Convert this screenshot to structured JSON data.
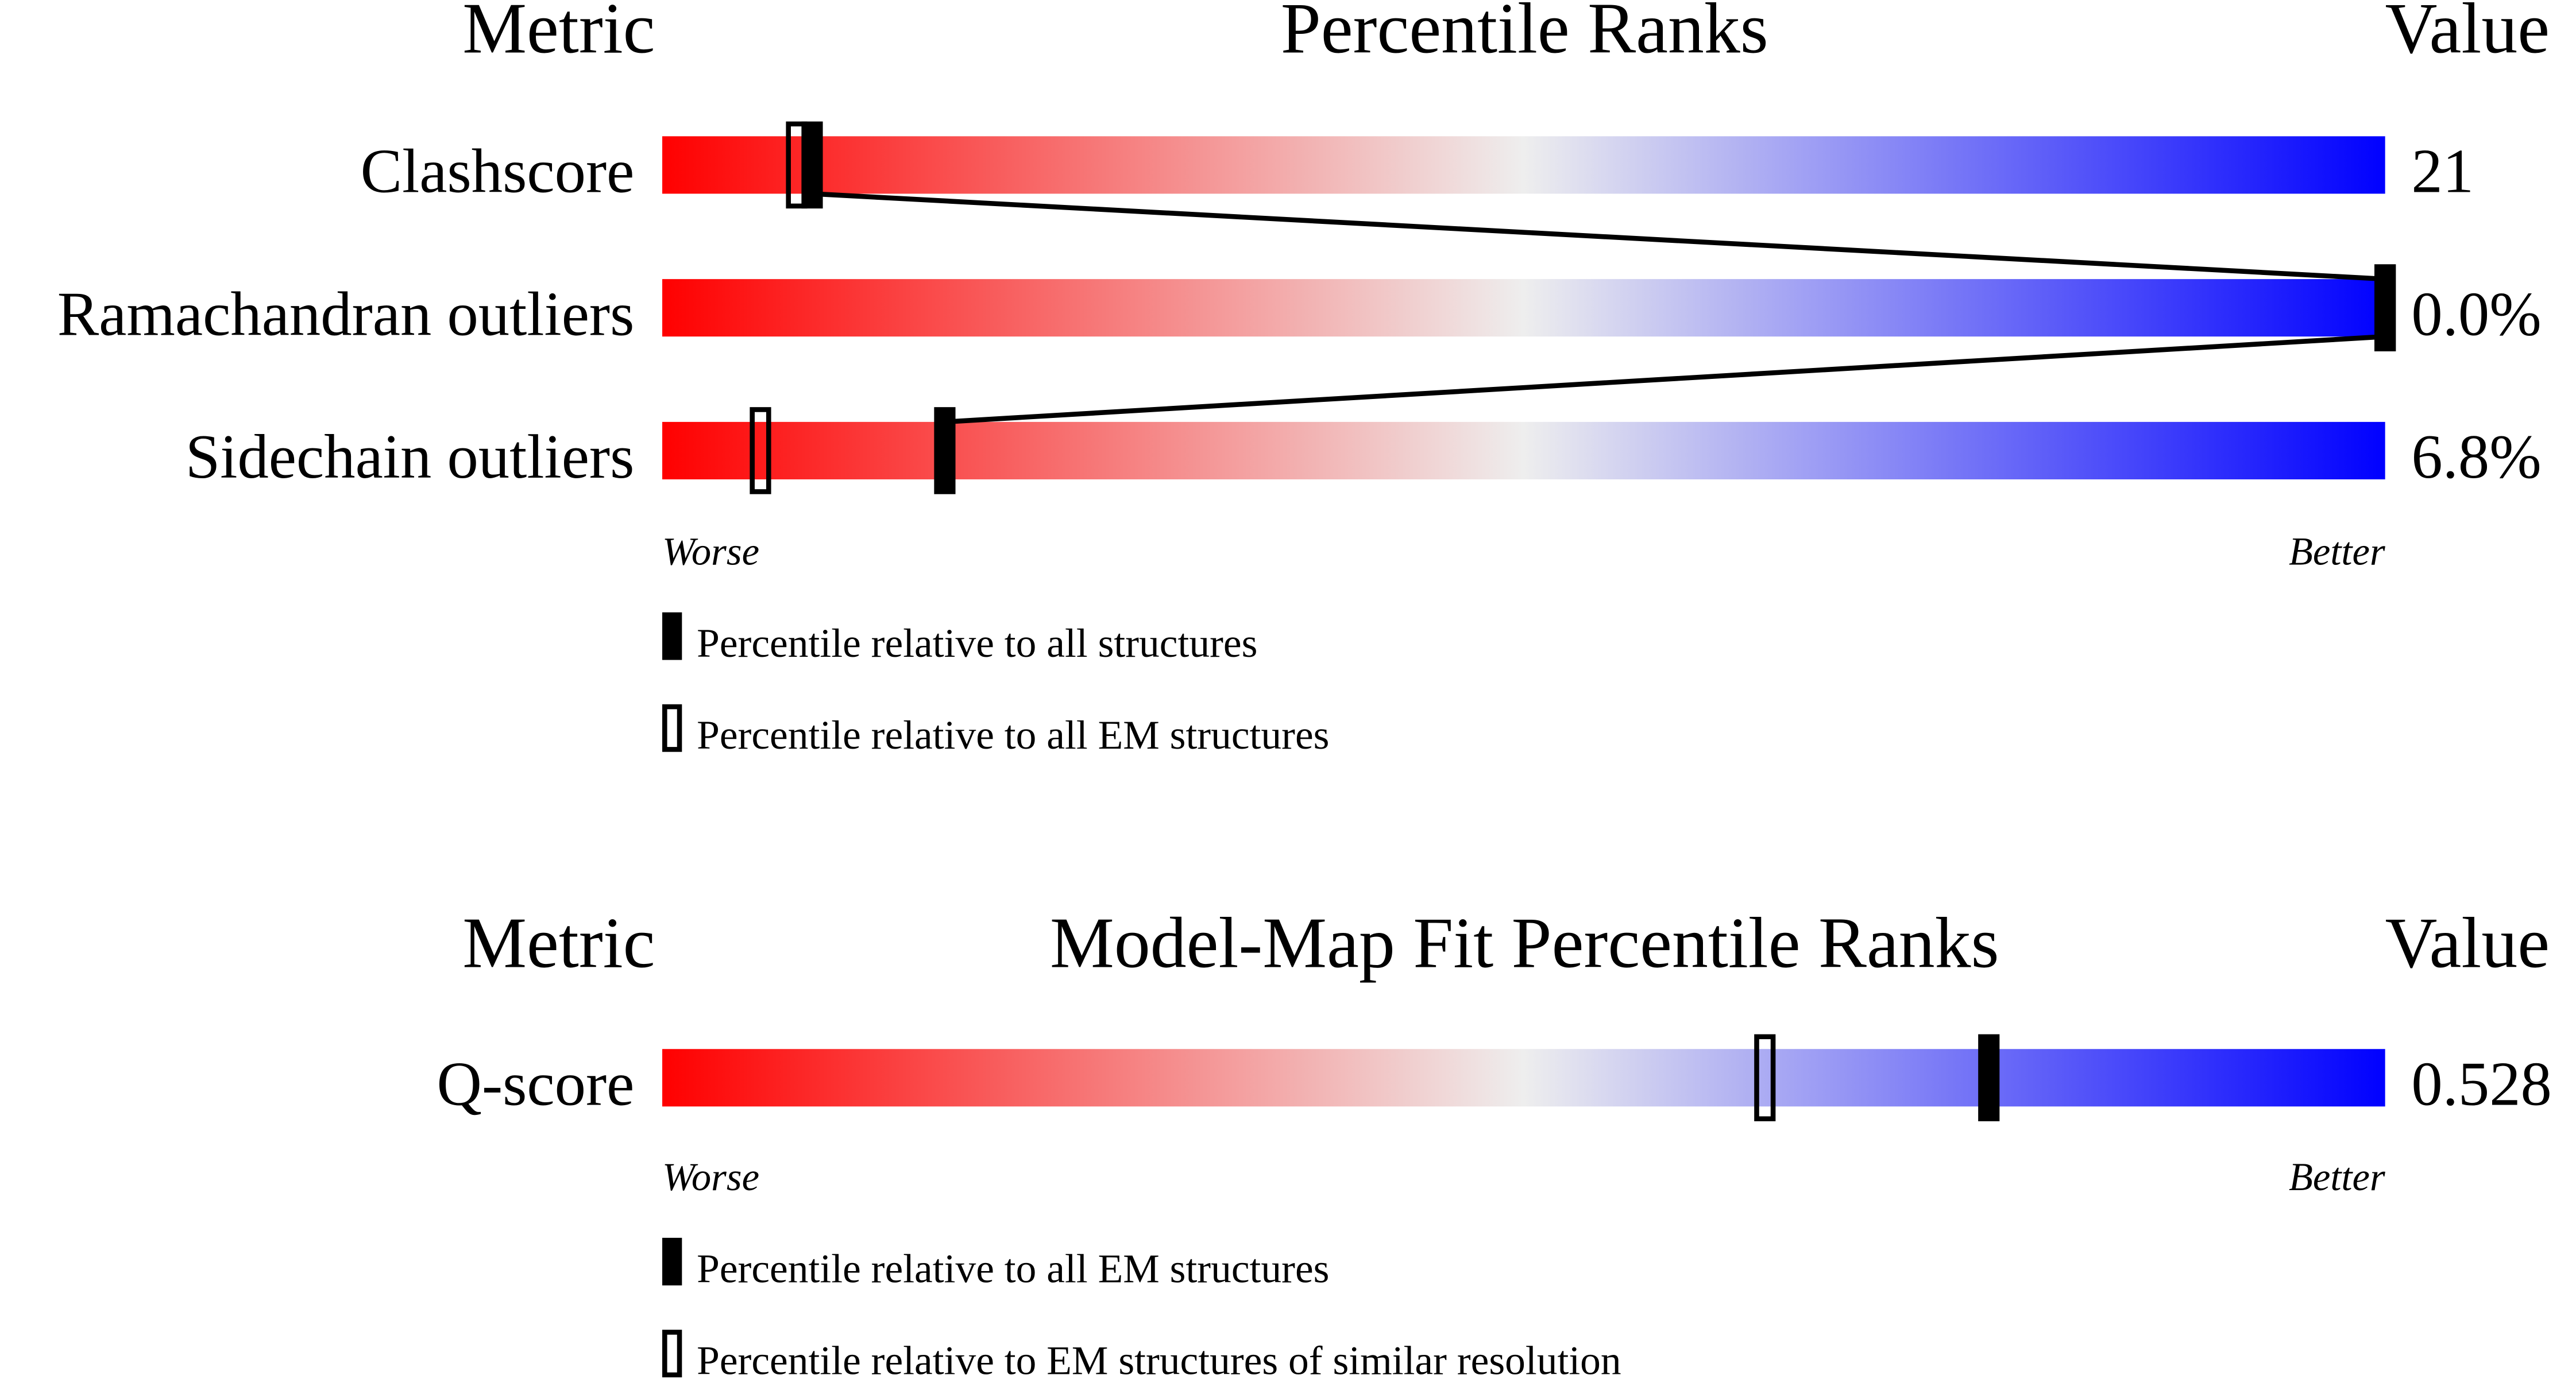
{
  "chart_data": [
    {
      "type": "table",
      "headers": {
        "metric": "Metric",
        "title": "Percentile Ranks",
        "value": "Value"
      },
      "scale_labels": {
        "worse": "Worse",
        "better": "Better"
      },
      "gradient_colors": [
        "#ff0000",
        "#eeeeee",
        "#0000ff"
      ],
      "xlim": [
        0,
        100
      ],
      "rows": [
        {
          "metric": "Clashscore",
          "value": "21",
          "percentile_all": 8.7,
          "percentile_secondary": 7.8
        },
        {
          "metric": "Ramachandran outliers",
          "value": "0.0%",
          "percentile_all": 100,
          "percentile_secondary": 100
        },
        {
          "metric": "Sidechain outliers",
          "value": "6.8%",
          "percentile_all": 16.4,
          "percentile_secondary": 5.7
        }
      ],
      "connect_filled_markers": true,
      "legend": {
        "filled": "Percentile relative to all structures",
        "open": "Percentile relative to all EM structures"
      }
    },
    {
      "type": "table",
      "headers": {
        "metric": "Metric",
        "title": "Model-Map Fit Percentile Ranks",
        "value": "Value"
      },
      "scale_labels": {
        "worse": "Worse",
        "better": "Better"
      },
      "gradient_colors": [
        "#ff0000",
        "#eeeeee",
        "#0000ff"
      ],
      "xlim": [
        0,
        100
      ],
      "rows": [
        {
          "metric": "Q-score",
          "value": "0.528",
          "percentile_all": 77,
          "percentile_secondary": 64
        }
      ],
      "connect_filled_markers": false,
      "legend": {
        "filled": "Percentile relative to all EM structures",
        "open": "Percentile relative to EM structures of similar resolution"
      }
    }
  ]
}
